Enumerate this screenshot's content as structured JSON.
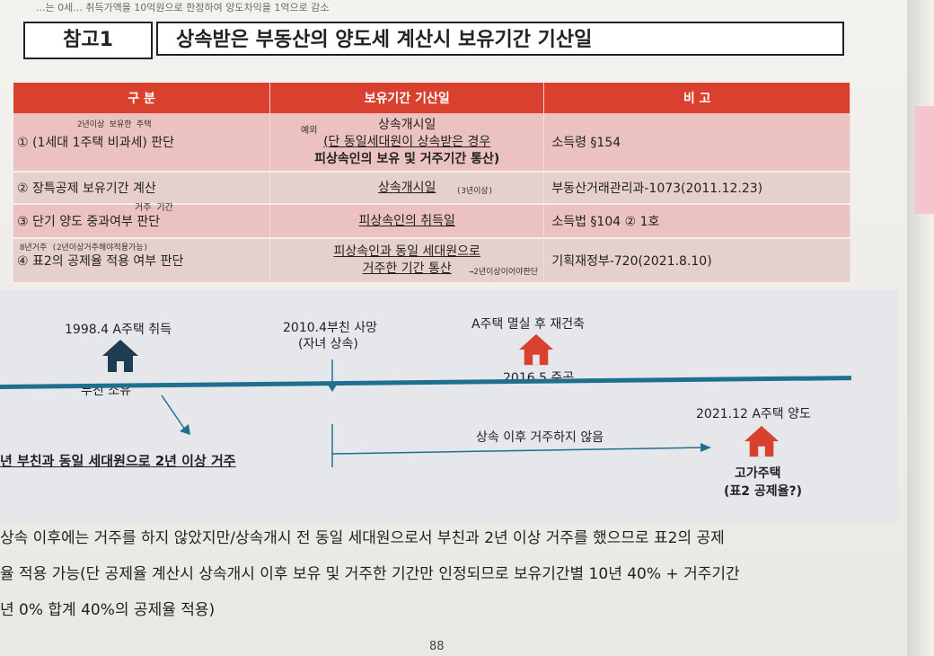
{
  "top_strip": "...는 0세...  취득가액을 10억원으로 한정하여 양도차익을 1억으로 감소",
  "title": {
    "label": "참고1",
    "main": "상속받은 부동산의 양도세 계산시 보유기간 기산일"
  },
  "table": {
    "headers": [
      "구 분",
      "보유기간 기산일",
      "비 고"
    ],
    "rows": [
      {
        "col1": "① (1세대 1주택 비과세) 판단",
        "col2_lines": [
          "상속개시일",
          "(단 동일세대원이 상속받은 경우",
          "피상속인의 보유 및 거주기간 통산)"
        ],
        "col3": "소득령 §154"
      },
      {
        "col1": "② 장특공제 보유기간 계산",
        "col2_lines": [
          "상속개시일"
        ],
        "col3": "부동산거래관리과-1073(2011.12.23)"
      },
      {
        "col1": "③ 단기 양도 중과여부 판단",
        "col2_lines": [
          "피상속인의 취득일"
        ],
        "col3": "소득법 §104 ② 1호"
      },
      {
        "col1": "④ 표2의 공제율 적용 여부 판단",
        "col2_lines": [
          "피상속인과 동일 세대원으로",
          "거주한 기간 통산"
        ],
        "col3": "기획재정부-720(2021.8.10)"
      }
    ]
  },
  "annotations": {
    "a1": "2년이상 보유한 주택",
    "a2": "예외",
    "a3": "거주 기간",
    "a4": "(3년이상)",
    "a5": "8년거주 (2년이상거주해야적용가능)",
    "a6": "→2년이상이어야판단"
  },
  "timeline": {
    "event1": "1998.4 A주택 취득",
    "owner": "부친 소유",
    "event2": "2010.4부친 사망",
    "event2_sub": "(자녀 상속)",
    "event3": "A주택 멸실 후 재건축",
    "event3_sub": "2016.5 준공",
    "event4": "2021.12 A주택 양도",
    "cohabit": "년 부친과 동일 세대원으로 2년 이상 거주",
    "no_residence": "상속 이후 거주하지 않음",
    "result": "고가주택",
    "result_sub": "(표2 공제율?)"
  },
  "colors": {
    "header_red": "#d9412e",
    "house_dark": "#1e3d52",
    "house_red": "#d9412e",
    "axis": "#1f6f8f"
  },
  "bottom_lines": [
    "상속 이후에는 거주를 하지 않았지만/상속개시 전 동일 세대원으로서 부친과 2년 이상 거주를 했으므로 표2의 공제",
    "율 적용 가능(단 공제율 계산시 상속개시 이후 보유 및 거주한 기간만 인정되므로 보유기간별 10년 40% + 거주기간",
    "년 0% 합계 40%의 공제율 적용)"
  ],
  "page_number": "88"
}
